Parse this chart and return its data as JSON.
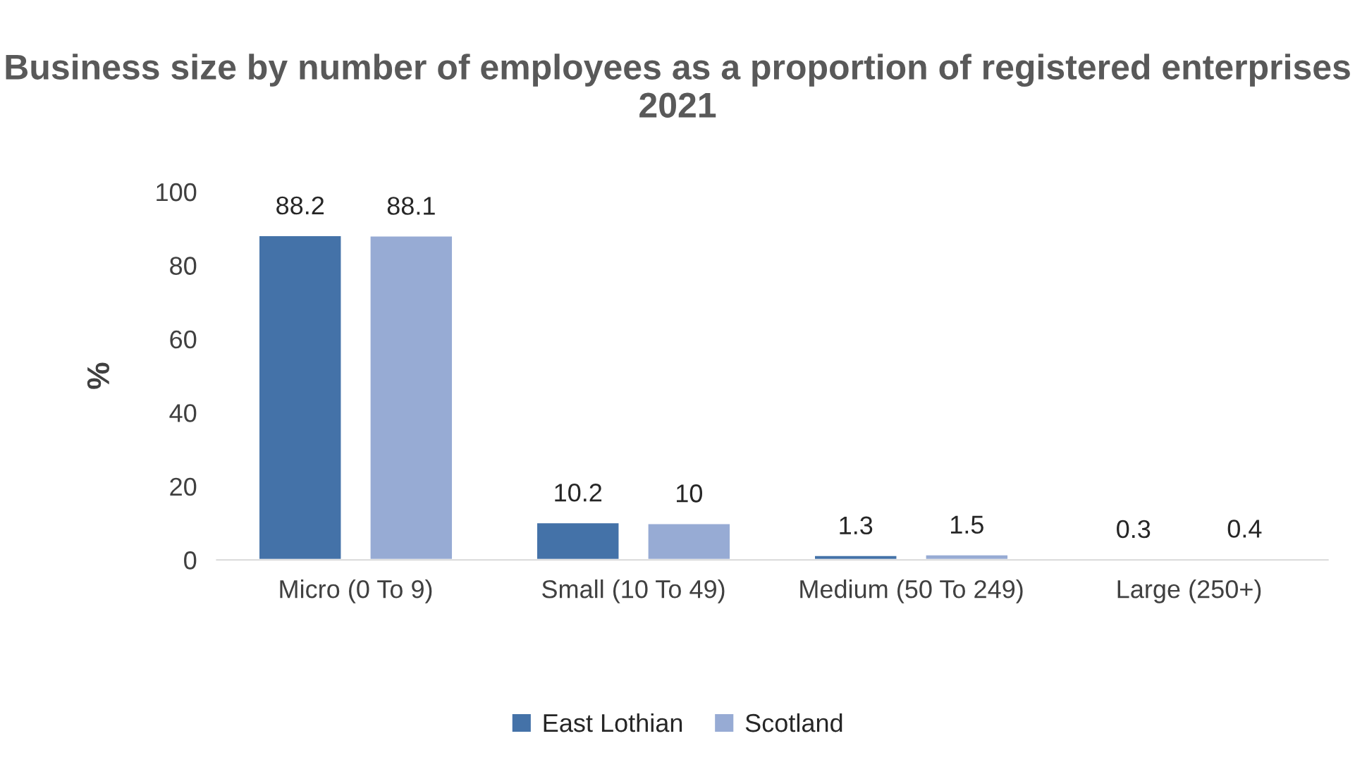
{
  "chart_data": {
    "type": "bar",
    "title": "Business size by number of employees as a proportion of registered enterprises 2021",
    "ylabel": "%",
    "categories": [
      "Micro (0 To 9)",
      "Small (10 To 49)",
      "Medium (50 To 249)",
      "Large (250+)"
    ],
    "series": [
      {
        "name": "East Lothian",
        "color": "#4472a8",
        "values": [
          88.2,
          10.2,
          1.3,
          0.3
        ]
      },
      {
        "name": "Scotland",
        "color": "#97abd4",
        "values": [
          88.1,
          10,
          1.5,
          0.4
        ]
      }
    ],
    "ylim": [
      0,
      100
    ],
    "yticks": [
      0,
      20,
      40,
      60,
      80,
      100
    ],
    "grid": false,
    "legend": "bottom",
    "data_labels": true
  }
}
